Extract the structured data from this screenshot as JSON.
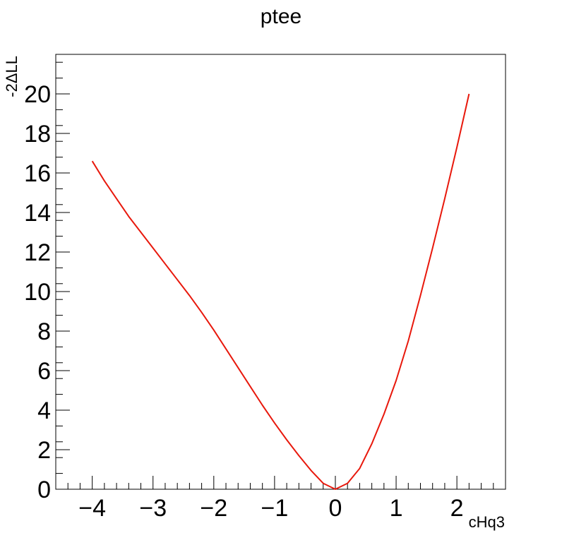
{
  "chart_data": {
    "type": "line",
    "title": "ptee",
    "xlabel": "cHq3",
    "ylabel": "-2ΔLL",
    "xlim": [
      -4.6,
      2.8
    ],
    "ylim": [
      0,
      22
    ],
    "xticks": [
      -4,
      -3,
      -2,
      -1,
      0,
      1,
      2
    ],
    "xtick_labels": [
      "−4",
      "−3",
      "−2",
      "−1",
      "0",
      "1",
      "2"
    ],
    "yticks": [
      0,
      2,
      4,
      6,
      8,
      10,
      12,
      14,
      16,
      18,
      20
    ],
    "ytick_labels": [
      "0",
      "2",
      "4",
      "6",
      "8",
      "10",
      "12",
      "14",
      "16",
      "18",
      "20"
    ],
    "grid": false,
    "line_color": "#e8180c",
    "series": [
      {
        "x": [
          -4.0,
          -3.8,
          -3.6,
          -3.4,
          -3.2,
          -3.0,
          -2.8,
          -2.6,
          -2.4,
          -2.2,
          -2.0,
          -1.8,
          -1.6,
          -1.4,
          -1.2,
          -1.0,
          -0.8,
          -0.6,
          -0.4,
          -0.2,
          0.0,
          0.2,
          0.4,
          0.6,
          0.8,
          1.0,
          1.2,
          1.4,
          1.6,
          1.8,
          2.0,
          2.2
        ],
        "y": [
          16.6,
          15.6,
          14.7,
          13.8,
          13.0,
          12.2,
          11.4,
          10.6,
          9.8,
          8.95,
          8.05,
          7.1,
          6.15,
          5.2,
          4.25,
          3.35,
          2.5,
          1.7,
          0.95,
          0.3,
          0.0,
          0.3,
          1.05,
          2.3,
          3.8,
          5.5,
          7.5,
          9.8,
          12.2,
          14.7,
          17.3,
          20.0
        ]
      }
    ]
  }
}
